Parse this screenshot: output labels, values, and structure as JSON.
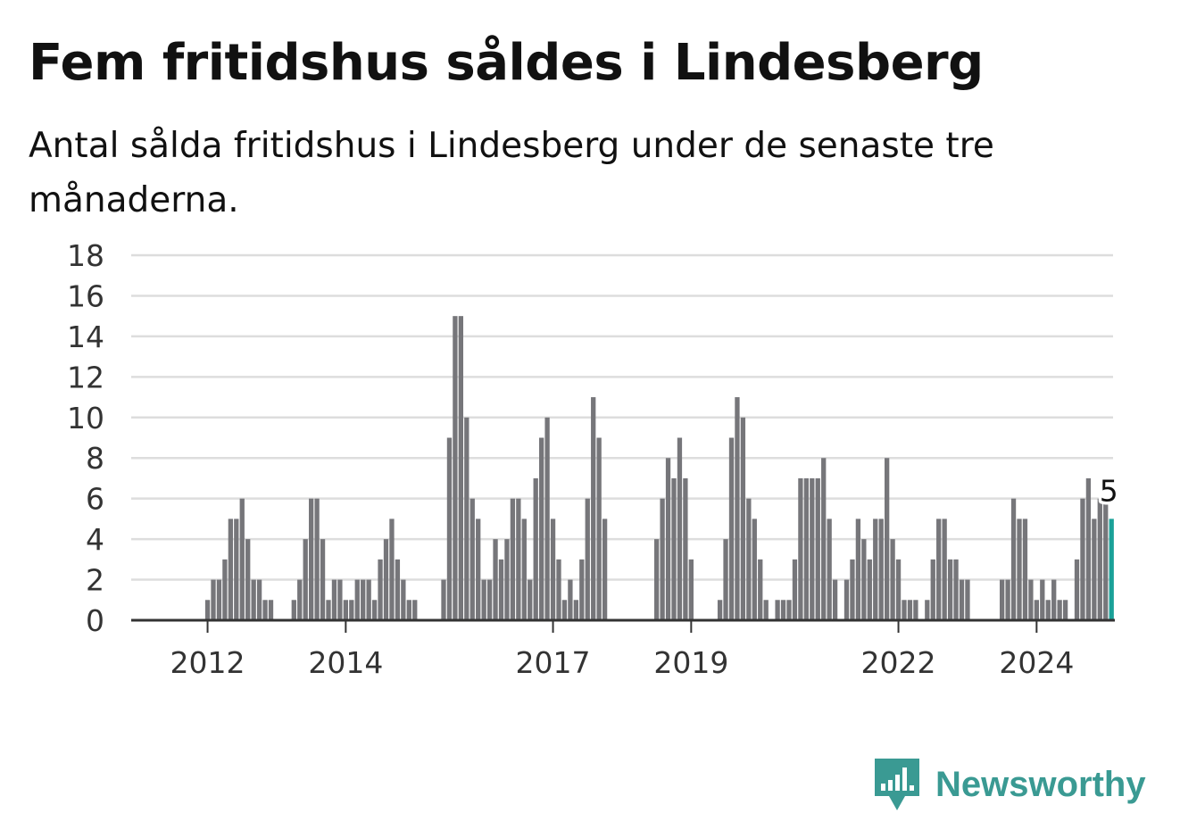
{
  "title": "Fem fritidshus såldes i Lindesberg",
  "subtitle": "Antal sålda fritidshus i Lindesberg under de senaste tre månaderna.",
  "brand": {
    "name": "Newsworthy",
    "color": "#3a9a93",
    "icon": "bar-chart-speech-bubble-icon"
  },
  "chart_data": {
    "type": "bar",
    "x_start": {
      "year": 2011,
      "month": 1
    },
    "values": [
      0,
      0,
      0,
      0,
      0,
      0,
      0,
      0,
      0,
      0,
      0,
      0,
      1,
      2,
      2,
      3,
      5,
      5,
      6,
      4,
      2,
      2,
      1,
      1,
      0,
      0,
      0,
      1,
      2,
      4,
      6,
      6,
      4,
      1,
      2,
      2,
      1,
      1,
      2,
      2,
      2,
      1,
      3,
      4,
      5,
      3,
      2,
      1,
      1,
      0,
      0,
      0,
      0,
      2,
      9,
      15,
      15,
      10,
      6,
      5,
      2,
      2,
      4,
      3,
      4,
      6,
      6,
      5,
      2,
      7,
      9,
      10,
      5,
      3,
      1,
      2,
      1,
      3,
      6,
      11,
      9,
      5,
      0,
      0,
      0,
      0,
      0,
      0,
      0,
      0,
      4,
      6,
      8,
      7,
      9,
      7,
      3,
      0,
      0,
      0,
      0,
      1,
      4,
      9,
      11,
      10,
      6,
      5,
      3,
      1,
      0,
      1,
      1,
      1,
      3,
      7,
      7,
      7,
      7,
      8,
      5,
      2,
      0,
      2,
      3,
      5,
      4,
      3,
      5,
      5,
      8,
      4,
      3,
      1,
      1,
      1,
      0,
      1,
      3,
      5,
      5,
      3,
      3,
      2,
      2,
      0,
      0,
      0,
      0,
      0,
      2,
      2,
      6,
      5,
      5,
      2,
      1,
      2,
      1,
      2,
      1,
      1,
      0,
      3,
      6,
      7,
      5,
      6,
      6,
      5
    ],
    "highlight_label": "5",
    "x_ticks": [
      "2012",
      "2014",
      "2017",
      "2019",
      "2022",
      "2024"
    ],
    "y_ticks": [
      "0",
      "2",
      "4",
      "6",
      "8",
      "10",
      "12",
      "14",
      "16",
      "18"
    ],
    "ylim": [
      0,
      18
    ],
    "grid": true,
    "colors": {
      "bar": "#76767a",
      "highlight": "#1aa198",
      "grid": "#dddddd",
      "axis": "#333333"
    }
  }
}
